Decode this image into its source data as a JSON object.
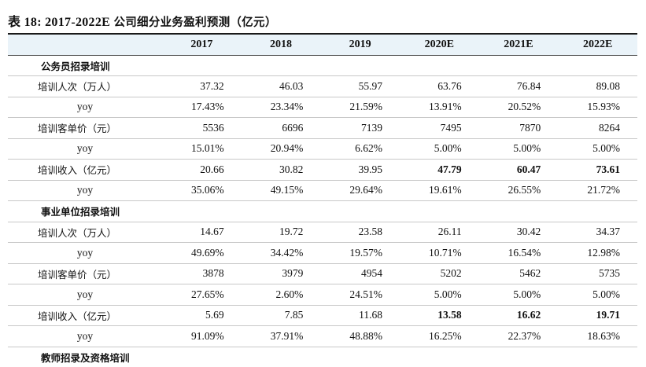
{
  "title_prefix": "表 18: 2017-2022E ",
  "title_suffix": "公司细分业务盈利预测（亿元）",
  "columns": [
    "2017",
    "2018",
    "2019",
    "2020E",
    "2021E",
    "2022E"
  ],
  "sections": [
    {
      "name": "公务员招录培训",
      "rows": [
        {
          "label": "培训人次（万人）",
          "values": [
            "37.32",
            "46.03",
            "55.97",
            "63.76",
            "76.84",
            "89.08"
          ]
        },
        {
          "label": "yoy",
          "values": [
            "17.43%",
            "23.34%",
            "21.59%",
            "13.91%",
            "20.52%",
            "15.93%"
          ]
        },
        {
          "label": "培训客单价（元）",
          "values": [
            "5536",
            "6696",
            "7139",
            "7495",
            "7870",
            "8264"
          ]
        },
        {
          "label": "yoy",
          "values": [
            "15.01%",
            "20.94%",
            "6.62%",
            "5.00%",
            "5.00%",
            "5.00%"
          ]
        },
        {
          "label": "培训收入（亿元）",
          "values": [
            "20.66",
            "30.82",
            "39.95",
            "47.79",
            "60.47",
            "73.61"
          ]
        },
        {
          "label": "yoy",
          "values": [
            "35.06%",
            "49.15%",
            "29.64%",
            "19.61%",
            "26.55%",
            "21.72%"
          ]
        }
      ]
    },
    {
      "name": "事业单位招录培训",
      "rows": [
        {
          "label": "培训人次（万人）",
          "values": [
            "14.67",
            "19.72",
            "23.58",
            "26.11",
            "30.42",
            "34.37"
          ]
        },
        {
          "label": "yoy",
          "values": [
            "49.69%",
            "34.42%",
            "19.57%",
            "10.71%",
            "16.54%",
            "12.98%"
          ]
        },
        {
          "label": "培训客单价（元）",
          "values": [
            "3878",
            "3979",
            "4954",
            "5202",
            "5462",
            "5735"
          ]
        },
        {
          "label": "yoy",
          "values": [
            "27.65%",
            "2.60%",
            "24.51%",
            "5.00%",
            "5.00%",
            "5.00%"
          ]
        },
        {
          "label": "培训收入（亿元）",
          "values": [
            "5.69",
            "7.85",
            "11.68",
            "13.58",
            "16.62",
            "19.71"
          ]
        },
        {
          "label": "yoy",
          "values": [
            "91.09%",
            "37.91%",
            "48.88%",
            "16.25%",
            "22.37%",
            "18.63%"
          ]
        }
      ]
    },
    {
      "name": "教师招录及资格培训",
      "rows": []
    }
  ]
}
